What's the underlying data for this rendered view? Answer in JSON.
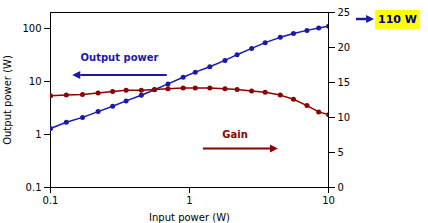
{
  "chart_data": {
    "type": "line",
    "x": [
      0.1,
      0.13,
      0.17,
      0.22,
      0.28,
      0.35,
      0.45,
      0.56,
      0.7,
      0.9,
      1.1,
      1.4,
      1.8,
      2.2,
      2.8,
      3.5,
      4.5,
      5.6,
      7.0,
      8.5,
      10.0
    ],
    "xlabel": "Input power (W)",
    "ylabel": "Output power (W)",
    "log": true,
    "xlim": [
      0.1,
      10
    ],
    "xticks": [
      0.1,
      1,
      10
    ],
    "ylim": [
      0.1,
      200
    ],
    "yticks": [
      0.1,
      1,
      10,
      100
    ],
    "y2lim": [
      0,
      25
    ],
    "y2ticks": [
      0,
      5,
      10,
      15,
      20,
      25
    ],
    "grid": false,
    "series": [
      {
        "name": "Output power",
        "color": "#1919aa",
        "marker": "circle",
        "values": [
          1.3,
          1.7,
          2.1,
          2.7,
          3.4,
          4.3,
          5.5,
          7.0,
          9.0,
          12.0,
          15.0,
          19.0,
          25.0,
          32.0,
          42.0,
          54.0,
          68.0,
          80.0,
          92.0,
          102.0,
          110.0
        ]
      },
      {
        "name": "Gain",
        "axis": "y2",
        "color": "#8b0000",
        "marker": "circle",
        "values": [
          13.1,
          13.2,
          13.3,
          13.5,
          13.7,
          13.9,
          13.9,
          14.0,
          14.1,
          14.2,
          14.2,
          14.2,
          14.1,
          14.0,
          13.8,
          13.6,
          13.2,
          12.6,
          11.7,
          10.8,
          10.4
        ]
      }
    ],
    "annotations": [
      {
        "text": "110 W",
        "y": 24,
        "axis": "y2",
        "color": "#000088",
        "background": "#ffff00"
      }
    ]
  }
}
